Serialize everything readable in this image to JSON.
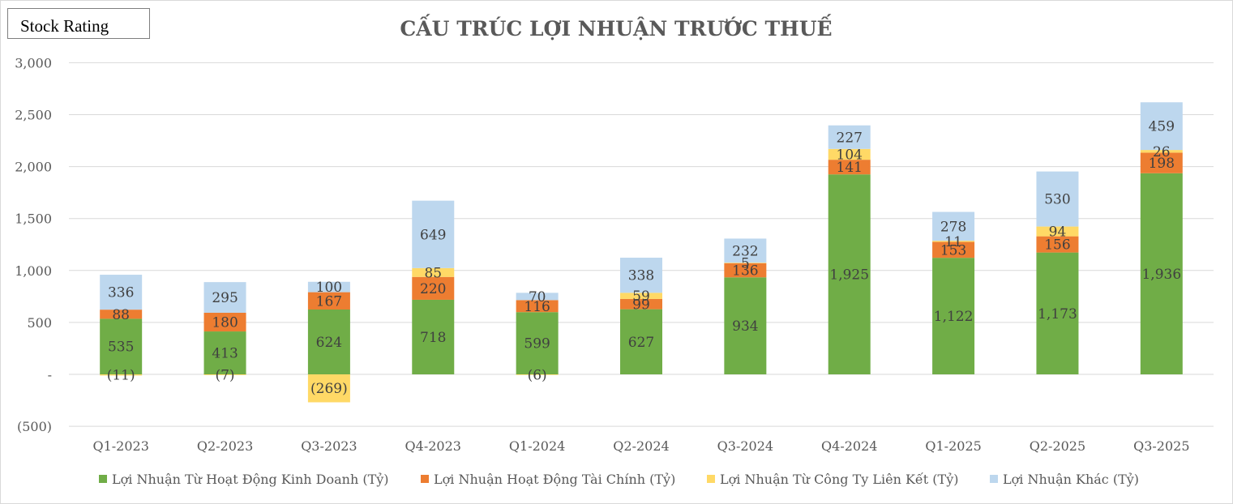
{
  "badge": {
    "label": "Stock Rating"
  },
  "chart_data": {
    "type": "bar",
    "stacked": true,
    "title": "CẤU TRÚC LỢI NHUẬN TRƯỚC THUẾ",
    "xlabel": "",
    "ylabel": "",
    "ylim": [
      -500,
      3000
    ],
    "yticks": [
      -500,
      0,
      500,
      1000,
      1500,
      2000,
      2500,
      3000
    ],
    "ytick_labels": [
      "(500)",
      "-",
      "500",
      "1,000",
      "1,500",
      "2,000",
      "2,500",
      "3,000"
    ],
    "grid": true,
    "legend_position": "bottom",
    "categories": [
      "Q1-2023",
      "Q2-2023",
      "Q3-2023",
      "Q4-2023",
      "Q1-2024",
      "Q2-2024",
      "Q3-2024",
      "Q4-2024",
      "Q1-2025",
      "Q2-2025",
      "Q3-2025"
    ],
    "series": [
      {
        "name": "Lợi Nhuận Từ Hoạt Động Kinh Doanh (Tỷ)",
        "color": "#70ad47",
        "values": [
          535,
          413,
          624,
          718,
          599,
          627,
          934,
          1925,
          1122,
          1173,
          1936
        ],
        "labels": [
          "535",
          "413",
          "624",
          "718",
          "599",
          "627",
          "934",
          "1,925",
          "1,122",
          "1,173",
          "1,936"
        ]
      },
      {
        "name": "Lợi Nhuận Hoạt Động Tài Chính (Tỷ)",
        "color": "#ed7d31",
        "values": [
          88,
          180,
          167,
          220,
          116,
          99,
          136,
          141,
          153,
          156,
          198
        ],
        "labels": [
          "88",
          "180",
          "167",
          "220",
          "116",
          "99",
          "136",
          "141",
          "153",
          "156",
          "198"
        ]
      },
      {
        "name": "Lợi Nhuận Từ Công Ty Liên Kết (Tỷ)",
        "color": "#ffd966",
        "values": [
          -11,
          -7,
          -269,
          85,
          -6,
          59,
          5,
          104,
          11,
          94,
          26
        ],
        "labels": [
          "(11)",
          "(7)",
          "(269)",
          "85",
          "(6)",
          "59",
          "5",
          "104",
          "11",
          "94",
          "26"
        ]
      },
      {
        "name": "Lợi Nhuận Khác (Tỷ)",
        "color": "#bdd7ee",
        "values": [
          336,
          295,
          100,
          649,
          70,
          338,
          232,
          227,
          278,
          530,
          459
        ],
        "labels": [
          "336",
          "295",
          "100",
          "649",
          "70",
          "338",
          "232",
          "227",
          "278",
          "530",
          "459"
        ]
      }
    ]
  }
}
